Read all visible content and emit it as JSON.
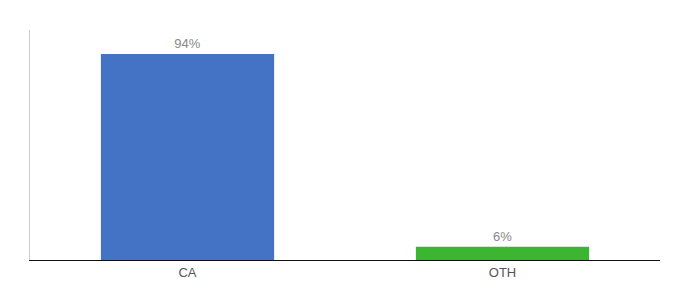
{
  "chart_data": {
    "type": "bar",
    "categories": [
      "CA",
      "OTH"
    ],
    "values": [
      94,
      6
    ],
    "value_labels": [
      "94%",
      "6%"
    ],
    "colors": [
      "#4472c4",
      "#3cb531"
    ],
    "ylim": [
      0,
      105
    ],
    "data_labels": true,
    "tick_labels": "x",
    "grid": false
  }
}
